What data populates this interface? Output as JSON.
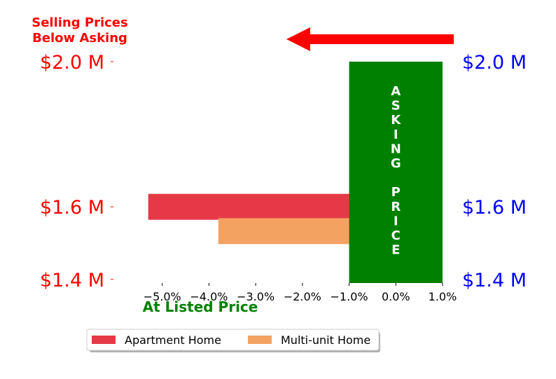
{
  "chart_data": {
    "type": "bar",
    "orientation": "horizontal",
    "series": [
      {
        "name": "Apartment Home",
        "color": "#e63946",
        "y": 1.6,
        "value": -5.3
      },
      {
        "name": "Multi-unit Home",
        "color": "#f4a261",
        "y": 1.533,
        "value": -3.8
      }
    ],
    "asking_price_band": {
      "label": "ASKING PRICE",
      "x_range": [
        -1.0,
        1.0
      ],
      "color": "#008000"
    },
    "xlim": [
      -6.0,
      1.3
    ],
    "ylim": [
      1.39,
      2.0
    ],
    "x_ticks": [
      -5.0,
      -4.0,
      -3.0,
      -2.0,
      -1.0,
      0.0,
      1.0
    ],
    "x_tick_labels": [
      "−5.0%",
      "−4.0%",
      "−3.0%",
      "−2.0%",
      "−1.0%",
      "0.0%",
      "1.0%"
    ],
    "y_ticks": [
      1.4,
      1.6,
      2.0
    ],
    "y_tick_labels": [
      "$1.4 M",
      "$1.6 M",
      "$2.0 M"
    ],
    "y_tick_color_left": "#ff0000",
    "y_tick_color_right": "#0000ff",
    "annotation_top_left": [
      "Selling Prices",
      "Below Asking"
    ],
    "annotation_top_left_color": "#ff0000",
    "annotation_bottom": "At Listed Price",
    "annotation_bottom_color": "#008000",
    "arrow_color": "#ff0000",
    "arrow_direction": "left",
    "legend_position": "bottom-center",
    "grid": false
  }
}
